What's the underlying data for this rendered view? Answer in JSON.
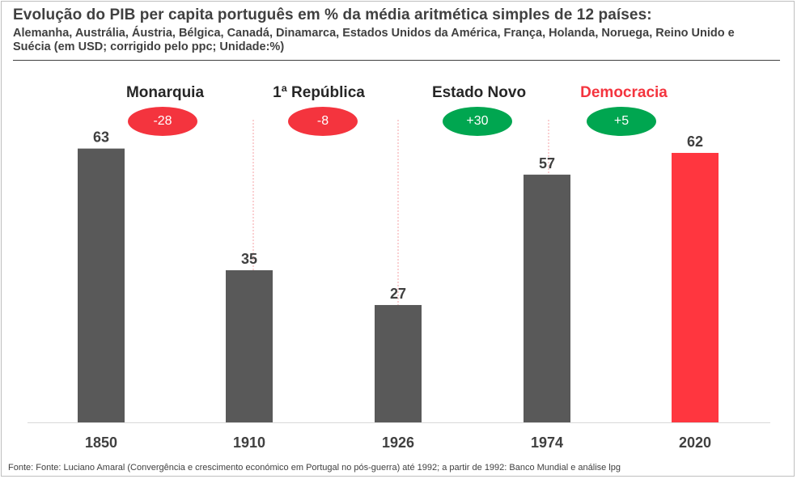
{
  "title": "Evolução do PIB per capita português em % da média aritmética simples de 12 países:",
  "subtitle": "Alemanha, Austrália, Áustria, Bélgica, Canadá, Dinamarca, Estados Unidos da América, França, Holanda, Noruega, Reino Unido e Suécia (em USD; corrigido pelo ppc; Unidade:%)",
  "periods": [
    {
      "label": "Monarquia",
      "change": "-28",
      "pill_color": "#f4343e",
      "label_color": "#262626"
    },
    {
      "label": "1ª República",
      "change": "-8",
      "pill_color": "#f4343e",
      "label_color": "#262626"
    },
    {
      "label": "Estado Novo",
      "change": "+30",
      "pill_color": "#00a650",
      "label_color": "#262626"
    },
    {
      "label": "Democracia",
      "change": "+5",
      "pill_color": "#00a650",
      "label_color": "#f4343e"
    }
  ],
  "source": "Fonte: Fonte: Luciano Amaral (Convergência e crescimento económico em Portugal no pós-guerra) até 1992; a partir de 1992: Banco Mundial e análise lpg",
  "chart_data": {
    "type": "bar",
    "categories": [
      "1850",
      "1910",
      "1926",
      "1974",
      "2020"
    ],
    "values": [
      63,
      35,
      27,
      57,
      62
    ],
    "bar_colors": [
      "#595959",
      "#595959",
      "#595959",
      "#595959",
      "#ff363f"
    ],
    "title": "Evolução do PIB per capita português em % da média aritmética simples de 12 países:",
    "xlabel": "",
    "ylabel": "",
    "ylim": [
      0,
      70
    ],
    "grid": false,
    "legend": "none"
  }
}
